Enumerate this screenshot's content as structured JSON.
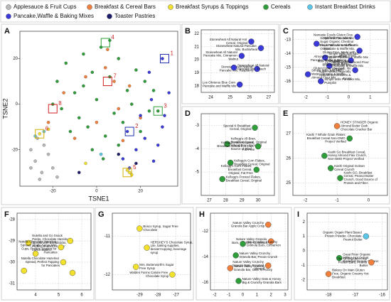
{
  "chart_data": [
    {
      "type": "scatter",
      "panel": "A",
      "xlabel": "TSNE1",
      "ylabel": "TSNE2",
      "xlim": [
        -35,
        37
      ],
      "ylim": [
        -36,
        32
      ],
      "xticks": [
        -20,
        0,
        20
      ],
      "yticks": [
        -20,
        0,
        20
      ],
      "grid": false,
      "series": [
        {
          "name": "Applesauce & Fruit Cups",
          "color": "#b8b8b8",
          "x": [
            -30,
            -28,
            -25,
            -22,
            -20,
            -27,
            -24,
            -18,
            -30,
            -26
          ],
          "y": [
            -20,
            -25,
            -30,
            -22,
            -28,
            -15,
            -18,
            -32,
            -28,
            -33
          ]
        },
        {
          "name": "Breakfast & Cereal Bars",
          "color": "#f0803c",
          "x": [
            -15,
            -5,
            4,
            10,
            15,
            -10,
            0,
            8,
            20,
            -22,
            5,
            12
          ],
          "y": [
            5,
            12,
            16,
            -2,
            8,
            -15,
            -8,
            10,
            -6,
            -8,
            24,
            -16
          ]
        },
        {
          "name": "Breakfast Syrups & Toppings",
          "color": "#f3e12e",
          "x": [
            -26,
            -22,
            15,
            14,
            16,
            -5
          ],
          "y": [
            -13,
            -11,
            -30,
            -29,
            -31,
            -26
          ]
        },
        {
          "name": "Cereals",
          "color": "#2f9e3a",
          "x": [
            -18,
            -14,
            -10,
            -6,
            -2,
            2,
            6,
            10,
            14,
            18,
            22,
            -16,
            -8,
            0,
            8,
            16,
            24,
            -12,
            -4,
            4,
            12,
            20,
            28,
            -20,
            -6,
            6,
            -2,
            10,
            26,
            3
          ],
          "y": [
            10,
            18,
            5,
            22,
            14,
            25,
            12,
            20,
            6,
            15,
            10,
            -2,
            -6,
            2,
            -4,
            0,
            -3,
            -12,
            -10,
            -14,
            -8,
            -12,
            -3,
            0,
            8,
            28,
            -20,
            -18,
            6,
            -24
          ]
        },
        {
          "name": "Instant Breakfast Drinks",
          "color": "#5cc6e8",
          "x": [
            -28,
            -24,
            2
          ],
          "y": [
            -14,
            -12,
            -22
          ]
        },
        {
          "name": "Pancake,Waffle & Baking Mixes",
          "color": "#3a3ad8",
          "x": [
            18,
            22,
            26,
            30,
            33,
            15,
            20,
            25,
            28,
            12,
            24,
            30,
            14,
            31
          ],
          "y": [
            -20,
            -15,
            -25,
            -10,
            5,
            -28,
            -5,
            2,
            -18,
            -24,
            14,
            20,
            -12,
            -5
          ]
        },
        {
          "name": "Toaster Pastries",
          "color": "#1c1c6a",
          "x": [
            10,
            -8,
            18
          ],
          "y": [
            -22,
            -30,
            -26
          ]
        }
      ],
      "markers": [
        {
          "label": "1",
          "x": 31,
          "y": 20,
          "color": "#2030b0"
        },
        {
          "label": "2",
          "x": 15,
          "y": -12,
          "color": "#2030b0"
        },
        {
          "label": "3",
          "x": 28,
          "y": -3,
          "color": "#2f9e3a"
        },
        {
          "label": "4",
          "x": 4,
          "y": 27,
          "color": "#2f9e3a"
        },
        {
          "label": "5",
          "x": 14,
          "y": -30,
          "color": "#d4b000"
        },
        {
          "label": "6",
          "x": -26,
          "y": -13,
          "color": "#d4b000"
        },
        {
          "label": "7",
          "x": 5,
          "y": 10,
          "color": "#d02020"
        },
        {
          "label": "8",
          "x": -20,
          "y": -2,
          "color": "#d02020"
        }
      ]
    },
    {
      "type": "scatter",
      "panel": "B",
      "xlim": [
        23.5,
        27.3
      ],
      "ylim": [
        17.5,
        22.3
      ],
      "xticks": [
        24,
        25,
        26,
        27
      ],
      "yticks": [
        18,
        19,
        20,
        21,
        22
      ],
      "grid": true,
      "series": [
        {
          "color": "#3a3ad8",
          "x": [
            26.1,
            26.6,
            25.6,
            26.4,
            25.2,
            25.5
          ],
          "y": [
            21.4,
            20.9,
            20.3,
            19.3,
            19.4,
            18.1
          ],
          "labels": [
            "Stonewheat All Natural Hot Cereal, Original",
            "Stonewheat Natural Pancake Mix, Buckwheat",
            "Stonewheat All Natural Pancake Mix, Cinnamon Walnut",
            "Stonewheat All Natural Pancake Mix, Raspberry",
            "Stonewheat All Natural Pancake Mix, Peach",
            "Los Olivieros Blue Corn Pancake and Waffle Mix"
          ]
        }
      ]
    },
    {
      "type": "scatter",
      "panel": "C",
      "xlim": [
        -2.6,
        1.8
      ],
      "ylim": [
        -16.8,
        -12.3
      ],
      "xticks": [
        -2,
        -1,
        0,
        1
      ],
      "yticks": [
        -16,
        -15,
        -14,
        -13
      ],
      "grid": true,
      "series": [
        {
          "color": "#3a3ad8",
          "x": [
            0.4,
            -1.5,
            0.5,
            -1.1,
            0.1,
            -0.9,
            0.3,
            -1.9,
            -1.3
          ],
          "y": [
            -12.8,
            -13.3,
            -13.8,
            -14.3,
            -14.5,
            -14.9,
            -15.2,
            -15.5,
            -16.0
          ],
          "labels": [
            "Namaste Foods Gluten Free Waffle & Pancake Mix",
            "Simple Mills No Added Sugar Organic Chestnut Flour Pancake & Waffle Mix Original",
            "Simple Mills Almond Flour Pancake & Waffle Mix, Gluten Free, Made with whole foods",
            "Simple Mills Just Add Water Pancake & Waffle Mix Original",
            "Almond Flour Breakfast Pancake, Waffle & Baking Mix Gluten Free",
            "Simple Mills Almond Flour Pancake & Waffle Mix Original",
            "Miss Jones Baking Keto Blueberry Muffin Mix Gluten Free, Low Carb, No Sugar Added, Naturally Sweetened Desserts & Treats",
            "Simple Mills Just Add Water Pancake & Waffle Almond Flour Mix",
            "Simple Mills Pancake Mix, Pumpkin"
          ]
        }
      ]
    },
    {
      "type": "scatter",
      "panel": "D",
      "xlim": [
        26.5,
        31
      ],
      "ylim": [
        -6,
        -2.5
      ],
      "xticks": [
        27,
        28,
        29,
        30
      ],
      "yticks": [
        -5,
        -4,
        -3
      ],
      "grid": true,
      "series": [
        {
          "color": "#2f9e3a",
          "x": [
            29.8,
            28.1,
            30.0,
            28.3,
            27.8,
            29.9
          ],
          "y": [
            -3.1,
            -3.8,
            -3.9,
            -4.6,
            -5.3,
            -4.9
          ],
          "labels": [
            "Special K Breakfast Cereal, Original",
            "Kellogg's All-Bran, Breakfast Cereal, Original Wheat Bran, Excellent Source of Fiber",
            "Kellogg's Rice Krispies, Breakfast Cereal in a Cup, Fat-Free",
            "Kellogg's Corn Flakes, Breakfast Cereal, Original",
            "Kellogg's Frosted Flakes, Breakfast Cereal, Original",
            "Kellogg's Corn Flakes, Breakfast Cereal, Original, Fat-Free"
          ]
        }
      ]
    },
    {
      "type": "scatter",
      "panel": "E",
      "xlim": [
        -2.4,
        0.6
      ],
      "ylim": [
        24.5,
        27.8
      ],
      "xticks": [
        -2,
        -1,
        0
      ],
      "yticks": [
        25,
        26,
        27
      ],
      "grid": true,
      "series": [
        {
          "color": "#f0803c",
          "x": [
            -1.0
          ],
          "y": [
            27.3
          ],
          "labels": [
            "HONEY STINGER Organic Almond Butter Dark Chocolate Cracker Bar"
          ]
        },
        {
          "color": "#2f9e3a",
          "x": [
            -0.6,
            -1.4,
            -1.2,
            -0.9
          ],
          "y": [
            26.8,
            26.1,
            25.6,
            25.2
          ],
          "labels": [
            "Kashi 7 Whole Grain Flakes Breakfast Cereal Non-GMO Project Verified",
            "Kashi Go Breakfast Cereal, Honey Almond Flax Crunch, Non-GMO Project Verified",
            "Kashi Original Golean Cereal Crunch",
            "Kashi GO, Breakfast Cereal, Peanut Butter Crunch, Good Source of Protein and Fiber"
          ]
        }
      ]
    },
    {
      "type": "scatter",
      "panel": "F",
      "xlim": [
        3.2,
        6.4
      ],
      "ylim": [
        -31.3,
        -27.7
      ],
      "xticks": [
        4,
        5,
        6
      ],
      "yticks": [
        -31,
        -30,
        -29,
        -28
      ],
      "grid": true,
      "series": [
        {
          "color": "#f3e12e",
          "x": [
            3.7,
            4.0,
            3.5,
            5.1,
            5.5,
            5.2,
            5.6
          ],
          "y": [
            -29.1,
            -29.6,
            -30.4,
            -29.3,
            -29.0,
            -30.0,
            -30.5
          ],
          "labels": [
            "Nutella and Go Snack Packs, Chocolate Hazelnut Spread with Breadsticks, Perfect Snacks for Kids' Lunch Boxes",
            null,
            null,
            "Nutella Chocolate Hazelnut Spread, Single Serve Mini Cups, Perfect Topping for Pancakes",
            null,
            "Nutella Chocolate Hazelnut Spread, Perfect Topping for Pancakes",
            null
          ]
        }
      ]
    },
    {
      "type": "scatter",
      "panel": "G",
      "xlim": [
        -30.5,
        -26.2
      ],
      "ylim": [
        -12.4,
        -10.4
      ],
      "xticks": [
        -29,
        -28,
        -27
      ],
      "yticks": [
        -12,
        -11
      ],
      "grid": true,
      "series": [
        {
          "color": "#f3e12e",
          "x": [
            -29.0,
            -28.6,
            -27.2,
            -29.2
          ],
          "y": [
            -10.8,
            -11.3,
            -12.0,
            -11.8
          ],
          "labels": [
            "Bosco Syrup, Sugar Free Chocolate",
            "HERSHEY'S Chocolate Syrup, Lite, baking supplies, dessert topping, beverage syrup",
            "Walden Farms Calorie Free Chocolate Syrup",
            "Mrs. Butterworth's Sugar Free Syrup"
          ]
        }
      ]
    },
    {
      "type": "scatter",
      "panel": "H",
      "xlim": [
        -2.3,
        3.2
      ],
      "ylim": [
        -16.6,
        -10.6
      ],
      "xticks": [
        -2,
        -1,
        0,
        1,
        2,
        3
      ],
      "yticks": [
        -16,
        -14,
        -12
      ],
      "grid": true,
      "series": [
        {
          "color": "#f0803c",
          "x": [
            1.8,
            2.0,
            -0.9,
            1.8
          ],
          "y": [
            -11.5,
            -12.8,
            -14.9,
            -14.7
          ],
          "labels": [
            "Nature Valley Crunchy Granola Bar Apple Crisp",
            "Nature Valley Granola Bars, Crunchy, Cinnamon",
            "Nature Valley Crunchy Granola Bar, Oats 'N Honey",
            "Nature Valley Crunchy Granola Bars, Roasted Almond"
          ]
        },
        {
          "color": "#2f9e3a",
          "x": [
            0.0,
            -0.5,
            -0.3
          ],
          "y": [
            -13.0,
            -13.9,
            -15.9
          ],
          "labels": [
            "Nature Valley Crunchy Granola Bars, Cinnamon",
            "Nature Valley Crunchy Granola Bar, Pecan Crunch",
            "Nature Valley Oats & Honey Big & Crunchy Granola Bars"
          ]
        }
      ]
    },
    {
      "type": "scatter",
      "panel": "I",
      "xlim": [
        -18.8,
        -15.8
      ],
      "ylim": [
        -2.7,
        2.6
      ],
      "xticks": [
        -18,
        -17,
        -16
      ],
      "yticks": [
        -2,
        -1,
        0,
        1,
        2
      ],
      "grid": true,
      "series": [
        {
          "color": "#5cc6e8",
          "x": [
            -16.6
          ],
          "y": [
            1.0
          ],
          "labels": [
            "Organic Orgain Plant Based Protein Powder, Chocolate Peanut Butter"
          ]
        },
        {
          "color": "#2f9e3a",
          "x": [
            -17.6
          ],
          "y": [
            -0.5
          ],
          "labels": [
            "Great River Organic Milling, Hot Cereal, Breakfast Cereal, Organic"
          ]
        },
        {
          "color": "#f0803c",
          "x": [
            -16.4,
            -18.0
          ],
          "y": [
            -0.8,
            -1.6
          ],
          "labels": [
            "The GFB Gluten Free Protein Bars, Peanut Butter",
            "Bakery On Main Gluten Free, Organic Creamy Hot Breakfast"
          ]
        }
      ]
    }
  ]
}
